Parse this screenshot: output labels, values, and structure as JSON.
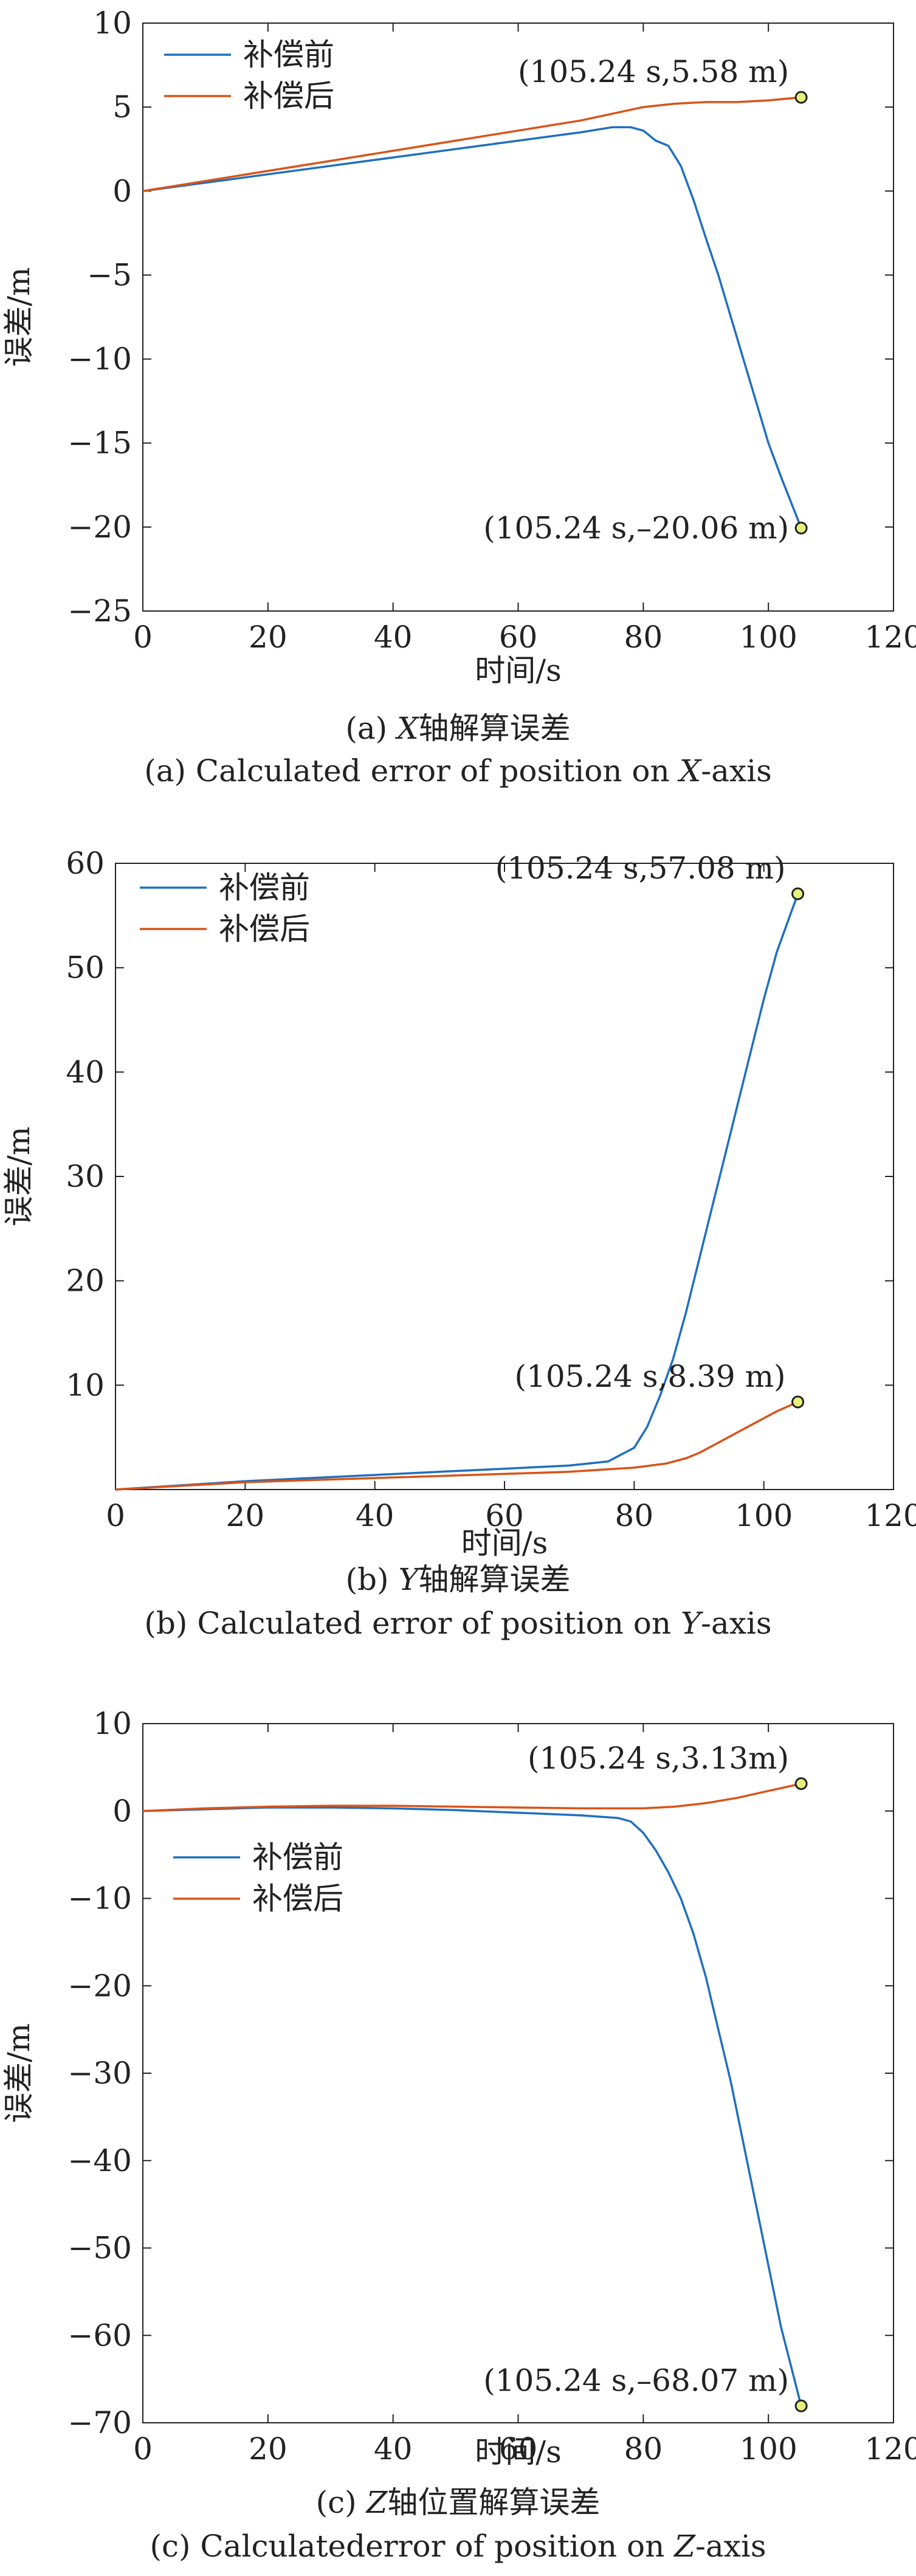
{
  "chart_data": [
    {
      "type": "line",
      "ylabel": "误差/m",
      "xlabel": "时间/s",
      "xlim": [
        0,
        120
      ],
      "ylim": [
        -25,
        10
      ],
      "xticks": [
        0,
        20,
        40,
        60,
        80,
        100,
        120
      ],
      "yticks": [
        10,
        5,
        0,
        -5,
        -10,
        -15,
        -20,
        -25
      ],
      "legend_position": "top-left",
      "grid": false,
      "series": [
        {
          "name": "补偿前",
          "color": "#1f6fbf",
          "x": [
            0,
            10,
            20,
            30,
            40,
            50,
            60,
            70,
            75,
            78,
            80,
            82,
            84,
            86,
            88,
            90,
            92,
            94,
            96,
            98,
            100,
            102,
            105.24
          ],
          "y": [
            0,
            0.5,
            1.0,
            1.5,
            2.0,
            2.5,
            3.0,
            3.5,
            3.8,
            3.8,
            3.6,
            3.0,
            2.7,
            1.5,
            -0.5,
            -2.8,
            -5.0,
            -7.5,
            -10.0,
            -12.5,
            -15.0,
            -17.0,
            -20.06
          ]
        },
        {
          "name": "补偿后",
          "color": "#d95319",
          "x": [
            0,
            10,
            20,
            30,
            40,
            50,
            60,
            70,
            75,
            80,
            85,
            90,
            95,
            100,
            105.24
          ],
          "y": [
            0,
            0.6,
            1.2,
            1.8,
            2.4,
            3.0,
            3.6,
            4.2,
            4.6,
            5.0,
            5.2,
            5.3,
            5.3,
            5.4,
            5.58
          ]
        }
      ],
      "annotations": [
        {
          "x": 105.24,
          "y": 5.58,
          "text": "(105.24 s,5.58 m)"
        },
        {
          "x": 105.24,
          "y": -20.06,
          "text": "(105.24 s,–20.06 m)"
        }
      ],
      "caption_cn": {
        "prefix": "(a) ",
        "italic": "X",
        "suffix": "轴解算误差"
      },
      "caption_en": {
        "prefix": "(a) Calculated error of position on ",
        "italic": "X",
        "suffix": "-axis"
      }
    },
    {
      "type": "line",
      "ylabel": "误差/m",
      "xlabel": "时间/s",
      "xlim": [
        0,
        120
      ],
      "ylim": [
        0,
        60
      ],
      "xticks": [
        0,
        20,
        40,
        60,
        80,
        100,
        120
      ],
      "yticks": [
        60,
        50,
        40,
        30,
        20,
        10
      ],
      "legend_position": "top-left",
      "grid": false,
      "series": [
        {
          "name": "补偿前",
          "color": "#1f6fbf",
          "x": [
            0,
            10,
            20,
            30,
            40,
            50,
            60,
            70,
            76,
            80,
            82,
            84,
            86,
            88,
            90,
            92,
            94,
            96,
            98,
            100,
            102,
            105.24
          ],
          "y": [
            0,
            0.4,
            0.8,
            1.1,
            1.4,
            1.7,
            2.0,
            2.3,
            2.7,
            4.0,
            6.0,
            9.0,
            12.5,
            17.0,
            22.0,
            27.0,
            32.0,
            37.0,
            42.0,
            47.0,
            51.5,
            57.08
          ]
        },
        {
          "name": "补偿后",
          "color": "#d95319",
          "x": [
            0,
            10,
            20,
            30,
            40,
            50,
            60,
            70,
            80,
            85,
            88,
            90,
            93,
            96,
            99,
            102,
            105.24
          ],
          "y": [
            0,
            0.35,
            0.7,
            0.9,
            1.1,
            1.3,
            1.5,
            1.7,
            2.1,
            2.5,
            3.0,
            3.5,
            4.5,
            5.5,
            6.5,
            7.5,
            8.39
          ]
        }
      ],
      "annotations": [
        {
          "x": 105.24,
          "y": 57.08,
          "text": "(105.24 s,57.08 m)"
        },
        {
          "x": 105.24,
          "y": 8.39,
          "text": "(105.24 s,8.39 m)"
        }
      ],
      "caption_cn": {
        "prefix": "(b) ",
        "italic": "Y",
        "suffix": "轴解算误差"
      },
      "caption_en": {
        "prefix": "(b) Calculated error of position on ",
        "italic": "Y",
        "suffix": "-axis"
      }
    },
    {
      "type": "line",
      "ylabel": "误差/m",
      "xlabel": "时间/s",
      "xlim": [
        0,
        120
      ],
      "ylim": [
        -70,
        10
      ],
      "xticks": [
        0,
        20,
        40,
        60,
        80,
        100,
        120
      ],
      "yticks": [
        10,
        0,
        -10,
        -20,
        -30,
        -40,
        -50,
        -60,
        -70
      ],
      "legend_position": "upper-left",
      "grid": false,
      "series": [
        {
          "name": "补偿前",
          "color": "#1f6fbf",
          "x": [
            0,
            10,
            20,
            30,
            40,
            50,
            60,
            70,
            76,
            78,
            80,
            82,
            84,
            86,
            88,
            90,
            92,
            94,
            96,
            98,
            100,
            102,
            105.24
          ],
          "y": [
            0,
            0.2,
            0.4,
            0.4,
            0.3,
            0.1,
            -0.2,
            -0.5,
            -0.8,
            -1.2,
            -2.5,
            -4.5,
            -7.0,
            -10.0,
            -14.0,
            -19.0,
            -25.0,
            -31.0,
            -38.0,
            -45.0,
            -52.0,
            -59.0,
            -68.07
          ]
        },
        {
          "name": "补偿后",
          "color": "#d95319",
          "x": [
            0,
            10,
            20,
            30,
            40,
            50,
            60,
            70,
            80,
            85,
            90,
            95,
            100,
            105.24
          ],
          "y": [
            0,
            0.3,
            0.5,
            0.6,
            0.6,
            0.5,
            0.4,
            0.3,
            0.3,
            0.5,
            0.9,
            1.5,
            2.3,
            3.13
          ]
        }
      ],
      "annotations": [
        {
          "x": 105.24,
          "y": 3.13,
          "text": "(105.24 s,3.13m)"
        },
        {
          "x": 105.24,
          "y": -68.07,
          "text": "(105.24 s,–68.07 m)"
        }
      ],
      "caption_cn": {
        "prefix": "(c) ",
        "italic": "Z",
        "suffix": "轴位置解算误差"
      },
      "caption_en": {
        "prefix": "(c) Calculatederror of position on ",
        "italic": "Z",
        "suffix": "-axis"
      }
    }
  ]
}
